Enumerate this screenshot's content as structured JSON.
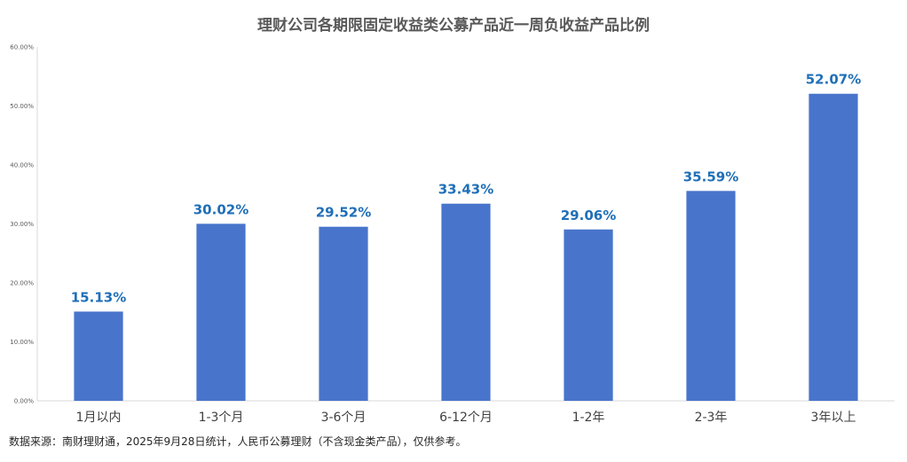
{
  "chart_data": {
    "type": "bar",
    "title": "理财公司各期限固定收益类公募产品近一周负收益产品比例",
    "categories": [
      "1月以内",
      "1-3个月",
      "3-6个月",
      "6-12个月",
      "1-2年",
      "2-3年",
      "3年以上"
    ],
    "values": [
      15.13,
      30.02,
      29.52,
      33.43,
      29.06,
      35.59,
      52.07
    ],
    "data_labels": [
      "15.13%",
      "30.02%",
      "29.52%",
      "33.43%",
      "29.06%",
      "35.59%",
      "52.07%"
    ],
    "ylim": [
      0,
      60
    ],
    "yticks": [
      0,
      10,
      20,
      30,
      40,
      50,
      60
    ],
    "ytick_labels": [
      "0.00%",
      "10.00%",
      "20.00%",
      "30.00%",
      "40.00%",
      "50.00%",
      "60.00%"
    ],
    "bar_color": "#4874cb",
    "label_color": "#1f6fb8",
    "grid": false,
    "legend": "none"
  },
  "footer": {
    "source": "数据来源：南财理财通，2025年9月28日统计，人民币公募理财（不含现金类产品），仅供参考。"
  }
}
